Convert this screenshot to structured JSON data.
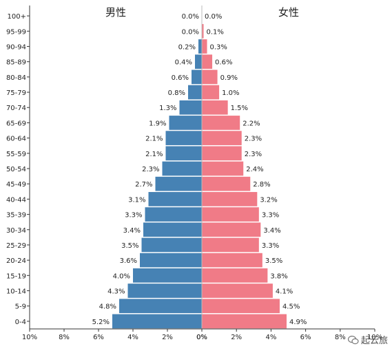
{
  "chart_data": {
    "type": "bar",
    "orientation": "horizontal",
    "layout": "population-pyramid",
    "categories": [
      "0-4",
      "5-9",
      "10-14",
      "15-19",
      "20-24",
      "25-29",
      "30-34",
      "35-39",
      "40-44",
      "45-49",
      "50-54",
      "55-59",
      "60-64",
      "65-69",
      "70-74",
      "75-79",
      "80-84",
      "85-89",
      "90-94",
      "95-99",
      "100+"
    ],
    "series": [
      {
        "name": "男性",
        "color": "#4682b4",
        "values": [
          5.2,
          4.8,
          4.3,
          4.0,
          3.6,
          3.5,
          3.4,
          3.3,
          3.1,
          2.7,
          2.3,
          2.1,
          2.1,
          1.9,
          1.3,
          0.8,
          0.6,
          0.4,
          0.2,
          0.0,
          0.0
        ]
      },
      {
        "name": "女性",
        "color": "#f07b87",
        "values": [
          4.9,
          4.5,
          4.1,
          3.8,
          3.5,
          3.3,
          3.4,
          3.3,
          3.2,
          2.8,
          2.4,
          2.3,
          2.3,
          2.2,
          1.5,
          1.0,
          0.9,
          0.6,
          0.3,
          0.1,
          0.0
        ]
      }
    ],
    "xlim_left": [
      0,
      10
    ],
    "xlim_right": [
      0,
      10
    ],
    "x_ticks_left": [
      "10%",
      "8%",
      "6%",
      "4%",
      "2%",
      "0%"
    ],
    "x_ticks_right": [
      "0%",
      "2%",
      "4%",
      "6%",
      "8%",
      "10%"
    ],
    "label_suffix": "%",
    "grid": false
  },
  "watermark": {
    "text": "起云旅"
  }
}
